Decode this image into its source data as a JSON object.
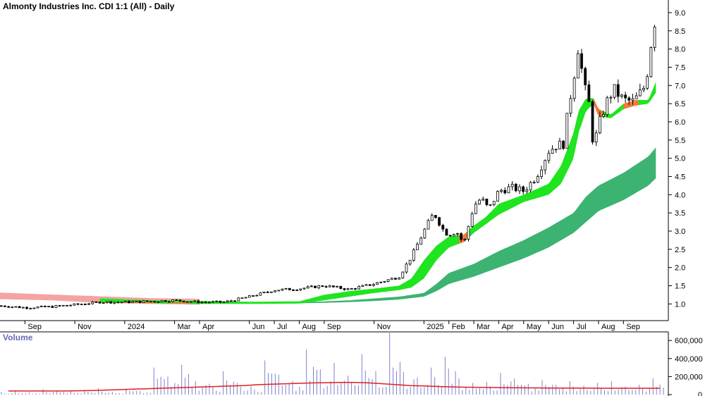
{
  "chart_data": {
    "type": "candlestick",
    "title": "Almonty Industries Inc. CDI 1:1 (All) - Daily",
    "price_axis": {
      "ticks": [
        "9.0",
        "8.5",
        "8.0",
        "7.5",
        "7.0",
        "6.5",
        "6.0",
        "5.5",
        "5.0",
        "4.5",
        "4.0",
        "3.5",
        "3.0",
        "2.5",
        "2.0",
        "1.5",
        "1.0"
      ],
      "ylim": [
        0.6,
        9.25
      ]
    },
    "x_axis": {
      "labels": [
        "Sep",
        "Nov",
        "2024",
        "Mar",
        "Apr",
        "Jun",
        "Jul",
        "Aug",
        "Sep",
        "Nov",
        "2025",
        "Feb",
        "Mar",
        "Apr",
        "May",
        "Jun",
        "Jul",
        "Aug",
        "Sep"
      ],
      "label_months": [
        1,
        3,
        5,
        7,
        8,
        10,
        11,
        12,
        13,
        15,
        17,
        18,
        19,
        20,
        21,
        22,
        23,
        24,
        25
      ],
      "xlim": [
        0,
        26.8
      ]
    },
    "price_series": {
      "x": [
        0,
        1,
        2,
        3,
        4,
        5,
        6,
        7,
        8,
        9,
        10,
        11,
        12,
        13,
        14,
        15,
        16,
        16.5,
        17,
        17.4,
        17.8,
        18,
        18.3,
        18.6,
        19,
        19.3,
        19.6,
        20,
        20.5,
        21,
        21.5,
        22,
        22.3,
        22.6,
        22.8,
        23,
        23.2,
        23.4,
        23.6,
        23.8,
        24,
        24.3,
        24.6,
        25,
        25.4,
        25.8,
        26,
        26.2
      ],
      "close": [
        0.95,
        0.9,
        0.92,
        0.98,
        1.05,
        1.05,
        1.07,
        1.1,
        1.05,
        1.05,
        1.2,
        1.38,
        1.42,
        1.5,
        1.4,
        1.55,
        1.75,
        2.3,
        3.0,
        3.5,
        3.0,
        2.9,
        3.0,
        2.65,
        3.7,
        3.9,
        3.6,
        4.1,
        4.2,
        4.1,
        4.5,
        5.2,
        5.35,
        5.4,
        6.4,
        7.2,
        8.15,
        7.0,
        6.6,
        5.3,
        5.9,
        6.5,
        6.9,
        6.6,
        6.55,
        6.9,
        7.5,
        8.75
      ]
    },
    "short_ribbon": {
      "x": [
        0,
        2,
        4,
        6,
        8,
        10,
        12,
        13,
        14,
        15,
        16,
        16.5,
        17,
        17.5,
        18,
        18.6,
        19,
        19.5,
        20,
        21,
        22,
        22.5,
        23,
        23.2,
        23.5,
        23.8,
        24,
        24.5,
        25,
        25.5,
        26,
        26.3
      ],
      "upper": [
        1.25,
        1.2,
        1.15,
        1.1,
        1.08,
        1.06,
        1.07,
        1.25,
        1.35,
        1.42,
        1.5,
        1.7,
        2.2,
        2.6,
        2.85,
        2.9,
        3.15,
        3.4,
        3.75,
        4.0,
        4.3,
        4.8,
        5.7,
        6.3,
        6.65,
        6.65,
        6.35,
        6.2,
        6.5,
        6.6,
        6.6,
        7.1
      ],
      "lower": [
        1.15,
        1.12,
        1.05,
        1.02,
        1.0,
        1.0,
        1.01,
        1.1,
        1.2,
        1.3,
        1.38,
        1.45,
        1.7,
        2.2,
        2.55,
        2.7,
        2.95,
        3.2,
        3.45,
        3.8,
        4.0,
        4.3,
        5.0,
        5.7,
        6.3,
        6.5,
        6.15,
        6.1,
        6.35,
        6.45,
        6.5,
        6.8
      ],
      "bearish_ranges": [
        [
          0,
          8
        ],
        [
          18.4,
          18.8
        ],
        [
          23.8,
          24.2
        ],
        [
          25.0,
          25.6
        ]
      ]
    },
    "long_ribbon": {
      "x": [
        12,
        13,
        14,
        15,
        16,
        17,
        17.5,
        18,
        19,
        20,
        21,
        22,
        23,
        23.5,
        24,
        25,
        26,
        26.3
      ],
      "upper": [
        1.05,
        1.07,
        1.1,
        1.15,
        1.2,
        1.3,
        1.55,
        1.85,
        2.1,
        2.45,
        2.75,
        3.1,
        3.5,
        3.95,
        4.25,
        4.6,
        5.05,
        5.3
      ],
      "lower": [
        1.02,
        1.03,
        1.05,
        1.08,
        1.12,
        1.2,
        1.35,
        1.55,
        1.75,
        2.0,
        2.25,
        2.55,
        2.95,
        3.25,
        3.55,
        3.85,
        4.25,
        4.45
      ]
    },
    "volume": {
      "title": "Volume",
      "ticks": [
        "600,000",
        "400,000",
        "200,000",
        "0"
      ],
      "ylim": [
        0,
        680000
      ],
      "values": [
        30000,
        45000,
        25000,
        60000,
        40000,
        35000,
        50000,
        70000,
        30000,
        65000,
        40000,
        300000,
        200000,
        330000,
        150000,
        120000,
        260000,
        130000,
        90000,
        380000,
        220000,
        150000,
        500000,
        280000,
        350000,
        210000,
        450000,
        260000,
        700000,
        250000,
        190000,
        300000,
        420000,
        180000,
        130000,
        140000,
        240000,
        180000,
        120000,
        160000,
        110000,
        150000,
        100000,
        130000,
        150000,
        90000,
        110000,
        180000
      ],
      "avg": [
        40000,
        40000,
        40000,
        40000,
        40000,
        42000,
        45000,
        50000,
        55000,
        60000,
        65000,
        70000,
        75000,
        80000,
        85000,
        90000,
        95000,
        100000,
        110000,
        115000,
        120000,
        125000,
        130000,
        132000,
        135000,
        135000,
        130000,
        120000,
        110000,
        100000,
        95000,
        90000,
        85000,
        82000,
        80000,
        78000,
        76000,
        75000,
        74000,
        73000,
        72000,
        72000,
        71000,
        70000,
        70000,
        70000,
        70000,
        70000
      ]
    },
    "colors": {
      "short_bull": "#1fe41f",
      "short_bear": "#f27a3c",
      "long_ribbon": "#3cb371",
      "early_band": "#f4a3a3",
      "volume_bar": "#8080cc",
      "volume_avg": "#e01e1e",
      "grid": "#d8d8d8"
    }
  }
}
